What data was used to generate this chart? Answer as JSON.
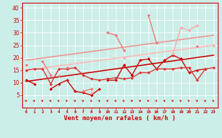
{
  "background_color": "#cceee8",
  "grid_color": "#aadddd",
  "x_labels": [
    0,
    1,
    2,
    3,
    4,
    5,
    6,
    7,
    8,
    9,
    10,
    11,
    12,
    13,
    14,
    15,
    16,
    17,
    18,
    19,
    20,
    21,
    22,
    23
  ],
  "xlabel": "Vent moyen/en rafales ( km/h )",
  "ylim": [
    0,
    42
  ],
  "yticks": [
    5,
    10,
    15,
    20,
    25,
    30,
    35,
    40
  ],
  "series": [
    {
      "name": "dark_red_main",
      "color": "#cc0000",
      "lw": 1.0,
      "marker": "D",
      "ms": 2.0,
      "y": [
        11,
        9.5,
        null,
        null,
        null,
        null,
        null,
        null,
        null,
        null,
        11,
        11,
        17,
        13,
        19,
        19.5,
        15.5,
        19,
        21,
        19.5,
        14,
        15,
        15.5,
        null
      ]
    },
    {
      "name": "dark_red_lower",
      "color": "#cc0000",
      "lw": 1.0,
      "marker": "D",
      "ms": 2.0,
      "y": [
        null,
        null,
        null,
        7.5,
        9.5,
        11,
        6.5,
        6,
        5,
        7.5,
        null,
        null,
        null,
        null,
        null,
        null,
        null,
        null,
        null,
        null,
        null,
        null,
        null,
        null
      ]
    },
    {
      "name": "medium_red_band",
      "color": "#dd3333",
      "lw": 1.0,
      "marker": "D",
      "ms": 2.0,
      "y": [
        15,
        15.5,
        15.5,
        9.5,
        15.5,
        15.5,
        16,
        13,
        11.5,
        11,
        11.5,
        12,
        11.5,
        12,
        14,
        14,
        15.5,
        15.5,
        15.5,
        16,
        16,
        11,
        15.5,
        16
      ]
    },
    {
      "name": "light_pink_spiky",
      "color": "#ee7777",
      "lw": 1.0,
      "marker": "D",
      "ms": 2.0,
      "y": [
        17,
        null,
        18.5,
        13,
        null,
        16,
        null,
        6.5,
        7.5,
        null,
        30,
        29,
        23,
        null,
        null,
        37,
        26,
        null,
        null,
        null,
        null,
        24.5,
        null,
        null
      ]
    },
    {
      "name": "salmon_upper_trend",
      "color": "#ee9999",
      "lw": 1.3,
      "marker": null,
      "ms": 0,
      "y": [
        19,
        19.43,
        19.87,
        20.3,
        20.74,
        21.17,
        21.61,
        22.04,
        22.48,
        22.91,
        23.35,
        23.78,
        24.22,
        24.65,
        25.09,
        25.52,
        25.96,
        26.39,
        26.83,
        27.26,
        27.7,
        28.13,
        28.57,
        29
      ]
    },
    {
      "name": "light_salmon_lower_trend",
      "color": "#ffbbbb",
      "lw": 1.3,
      "marker": null,
      "ms": 0,
      "y": [
        15,
        15.43,
        15.87,
        16.3,
        16.74,
        17.17,
        17.61,
        18.04,
        18.48,
        18.91,
        19.35,
        19.78,
        20.22,
        20.65,
        21.09,
        21.52,
        21.96,
        22.39,
        22.83,
        23.26,
        23.7,
        24.13,
        24.57,
        25
      ]
    },
    {
      "name": "pink_jagged",
      "color": "#ffaaaa",
      "lw": 1.0,
      "marker": "D",
      "ms": 2.0,
      "y": [
        null,
        null,
        null,
        null,
        13,
        null,
        null,
        null,
        6,
        null,
        null,
        null,
        20,
        null,
        null,
        null,
        null,
        null,
        21.5,
        32,
        31,
        33,
        null,
        25
      ]
    },
    {
      "name": "dark_red_bottom_trend",
      "color": "#cc0000",
      "lw": 1.2,
      "marker": null,
      "ms": 0,
      "y": [
        10.5,
        10.96,
        11.41,
        11.87,
        12.33,
        12.78,
        13.24,
        13.7,
        14.15,
        14.61,
        15.07,
        15.52,
        15.98,
        16.44,
        16.89,
        17.35,
        17.81,
        18.26,
        18.72,
        19.17,
        19.63,
        20.09,
        20.54,
        21
      ]
    }
  ],
  "arrow_color": "#cc0000",
  "xlabel_color": "#cc0000",
  "tick_color": "#cc0000",
  "spine_color": "#cc0000"
}
